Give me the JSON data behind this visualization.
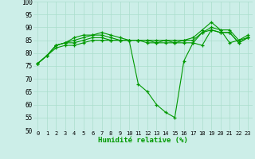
{
  "xlabel": "Humidité relative (%)",
  "background_color": "#cceee8",
  "grid_color": "#aaddcc",
  "line_color": "#009900",
  "marker": "+",
  "xlim": [
    -0.5,
    23.5
  ],
  "ylim": [
    50,
    100
  ],
  "yticks": [
    50,
    55,
    60,
    65,
    70,
    75,
    80,
    85,
    90,
    95,
    100
  ],
  "xticks": [
    0,
    1,
    2,
    3,
    4,
    5,
    6,
    7,
    8,
    9,
    10,
    11,
    12,
    13,
    14,
    15,
    16,
    17,
    18,
    19,
    20,
    21,
    22,
    23
  ],
  "series": [
    [
      76,
      79,
      83,
      84,
      86,
      87,
      87,
      88,
      87,
      86,
      85,
      85,
      85,
      85,
      85,
      85,
      85,
      86,
      89,
      92,
      89,
      89,
      85,
      87
    ],
    [
      76,
      79,
      83,
      84,
      85,
      86,
      87,
      87,
      86,
      85,
      85,
      85,
      85,
      84,
      85,
      84,
      85,
      85,
      88,
      89,
      88,
      88,
      84,
      86
    ],
    [
      76,
      79,
      83,
      84,
      84,
      85,
      86,
      86,
      85,
      85,
      85,
      85,
      84,
      84,
      84,
      84,
      84,
      84,
      83,
      89,
      88,
      88,
      84,
      86
    ],
    [
      76,
      79,
      82,
      83,
      83,
      84,
      85,
      85,
      85,
      85,
      85,
      68,
      65,
      60,
      57,
      55,
      77,
      84,
      88,
      90,
      89,
      84,
      85,
      86
    ]
  ]
}
